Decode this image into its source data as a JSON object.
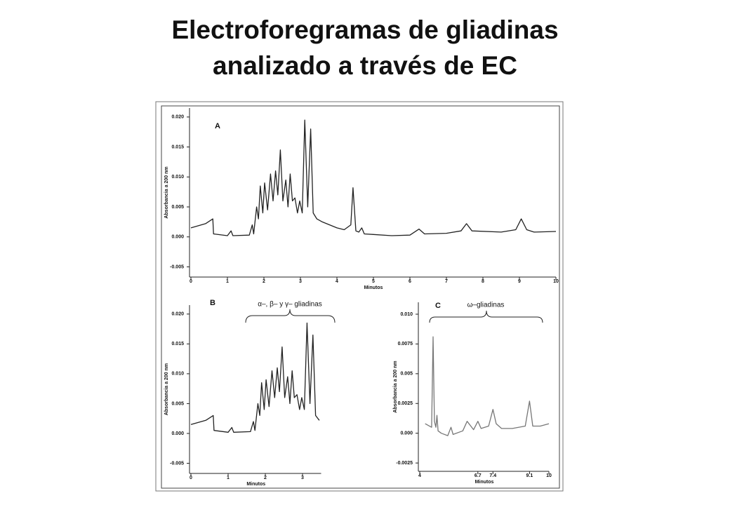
{
  "title": [
    "Electroforegramas de gliadinas",
    "analizado a través de EC"
  ],
  "chart_data": [
    {
      "type": "line",
      "annotation": "A",
      "xlabel": "Minutos",
      "ylabel": "Absorbancia a 200 nm",
      "xlim": [
        0,
        10
      ],
      "xticks": [
        0,
        1,
        2,
        3,
        4,
        5,
        6,
        7,
        8,
        9,
        10
      ],
      "ylim": [
        -0.0067,
        0.0215
      ],
      "yticks": [
        {
          "value": -0.005,
          "label": "-0.005"
        },
        {
          "value": 0,
          "label": "0.000"
        },
        0.005,
        {
          "value": 0.01,
          "label": "0.010"
        },
        0.015,
        {
          "value": 0.02,
          "label": "0.020"
        }
      ],
      "color": "#222222",
      "x": [
        0,
        0.4,
        0.6,
        0.62,
        1.0,
        1.1,
        1.15,
        1.6,
        1.68,
        1.72,
        1.8,
        1.85,
        1.9,
        1.97,
        2.02,
        2.1,
        2.18,
        2.25,
        2.32,
        2.38,
        2.45,
        2.52,
        2.6,
        2.66,
        2.72,
        2.78,
        2.85,
        2.92,
        2.98,
        3.05,
        3.12,
        3.2,
        3.28,
        3.35,
        3.45,
        3.6,
        3.8,
        4.0,
        4.2,
        4.38,
        4.44,
        4.52,
        4.6,
        4.68,
        4.75,
        5.0,
        5.5,
        6.0,
        6.25,
        6.4,
        7.0,
        7.4,
        7.55,
        7.7,
        8.5,
        8.9,
        9.05,
        9.2,
        9.4,
        10
      ],
      "values": [
        0.0015,
        0.0022,
        0.003,
        0.0005,
        0.0002,
        0.001,
        0.0002,
        0.0003,
        0.002,
        0.0005,
        0.005,
        0.003,
        0.0085,
        0.004,
        0.009,
        0.0045,
        0.0105,
        0.006,
        0.011,
        0.007,
        0.0145,
        0.006,
        0.0095,
        0.005,
        0.0105,
        0.006,
        0.0065,
        0.004,
        0.006,
        0.004,
        0.0195,
        0.005,
        0.018,
        0.004,
        0.003,
        0.0025,
        0.002,
        0.0015,
        0.0012,
        0.002,
        0.0082,
        0.001,
        0.0008,
        0.0015,
        0.0005,
        0.0004,
        0.0002,
        0.0003,
        0.0013,
        0.0005,
        0.0006,
        0.001,
        0.0022,
        0.001,
        0.0008,
        0.0012,
        0.003,
        0.0012,
        0.0008,
        0.0009
      ]
    },
    {
      "type": "line",
      "annotation": "B",
      "bracket_label": "α–, β– y  γ– gliadinas",
      "xlabel": "Minutos",
      "ylabel": "Absorbancia a 200 nm",
      "xlim": [
        0,
        3.5
      ],
      "xticks": [
        0,
        1,
        2,
        3
      ],
      "ylim": [
        -0.0067,
        0.0215
      ],
      "yticks": [
        {
          "value": -0.005,
          "label": "-0.005"
        },
        {
          "value": 0,
          "label": "0.000"
        },
        0.005,
        {
          "value": 0.01,
          "label": "0.010"
        },
        0.015,
        {
          "value": 0.02,
          "label": "0.020"
        }
      ],
      "color": "#222222",
      "x": [
        0,
        0.4,
        0.6,
        0.62,
        1.0,
        1.1,
        1.15,
        1.6,
        1.68,
        1.72,
        1.8,
        1.85,
        1.9,
        1.97,
        2.02,
        2.1,
        2.18,
        2.25,
        2.32,
        2.38,
        2.45,
        2.52,
        2.6,
        2.66,
        2.72,
        2.78,
        2.85,
        2.92,
        2.98,
        3.05,
        3.12,
        3.2,
        3.28,
        3.35,
        3.45
      ],
      "values": [
        0.0015,
        0.0022,
        0.003,
        0.0005,
        0.0002,
        0.001,
        0.0002,
        0.0003,
        0.002,
        0.0005,
        0.005,
        0.003,
        0.0085,
        0.004,
        0.009,
        0.0045,
        0.0105,
        0.006,
        0.011,
        0.007,
        0.0145,
        0.006,
        0.0095,
        0.005,
        0.0105,
        0.006,
        0.0065,
        0.004,
        0.006,
        0.004,
        0.0185,
        0.005,
        0.0165,
        0.003,
        0.0022
      ]
    },
    {
      "type": "line",
      "annotation": "C",
      "bracket_label": "ω–gliadinas",
      "xlabel": "Minutos",
      "ylabel": "Absorbancia a 200 nm",
      "xlim": [
        4,
        10
      ],
      "xticks": [
        4,
        6.7,
        7.4,
        9.1,
        10
      ],
      "ylim": [
        -0.0032,
        0.011
      ],
      "yticks": [
        -0.0025,
        {
          "value": 0,
          "label": "0.000"
        },
        0.0025,
        0.005,
        0.0075,
        {
          "value": 0.01,
          "label": "0.010"
        }
      ],
      "color": "#777777",
      "x": [
        4.25,
        4.55,
        4.62,
        4.68,
        4.75,
        4.8,
        4.85,
        5.0,
        5.3,
        5.45,
        5.55,
        6.0,
        6.2,
        6.5,
        6.7,
        6.85,
        7.2,
        7.4,
        7.55,
        7.8,
        8.3,
        8.9,
        9.1,
        9.25,
        9.6,
        10
      ],
      "values": [
        0.0008,
        0.0005,
        0.0081,
        0.001,
        0.0005,
        0.0015,
        0.0002,
        0.0,
        -0.0002,
        0.0005,
        -0.0001,
        0.0002,
        0.001,
        0.0003,
        0.001,
        0.0004,
        0.0006,
        0.002,
        0.0008,
        0.0004,
        0.0004,
        0.0006,
        0.0027,
        0.0006,
        0.0006,
        0.0008
      ]
    }
  ]
}
